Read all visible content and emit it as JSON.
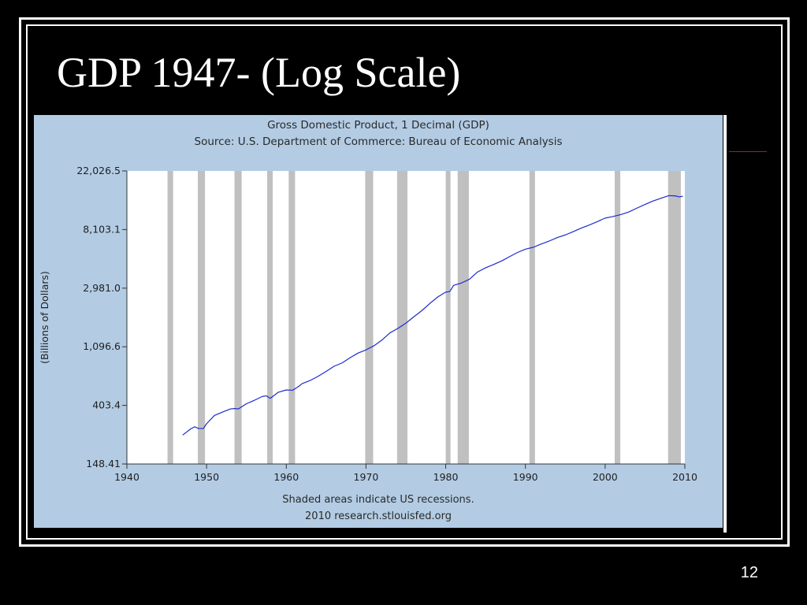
{
  "slide": {
    "title": "GDP 1947- (Log Scale)",
    "page_number": "12"
  },
  "colors": {
    "background": "#000000",
    "chart_background": "#b3cce4",
    "plot_background": "#ffffff",
    "recession_shade": "#c0c0c0",
    "series_line": "#1e2ccb",
    "accent_line": "#a61f14"
  },
  "chart_data": {
    "type": "line",
    "title": "Gross Domestic Product, 1 Decimal (GDP)",
    "subtitle": "Source: U.S. Department of Commerce: Bureau of Economic Analysis",
    "ylabel": "(Billions of Dollars)",
    "y_scale": "log",
    "xlim": [
      1940,
      2010
    ],
    "ylim": [
      148.41,
      22026.5
    ],
    "x_ticks": [
      1940,
      1950,
      1960,
      1970,
      1980,
      1990,
      2000,
      2010
    ],
    "x_tick_labels": [
      "1940",
      "1950",
      "1960",
      "1970",
      "1980",
      "1990",
      "2000",
      "2010"
    ],
    "y_ticks": [
      148.41,
      403.4,
      1096.6,
      2981.0,
      8103.1,
      22026.5
    ],
    "y_tick_labels": [
      "148.41",
      "403.4",
      "1,096.6",
      "2,981.0",
      "8,103.1",
      "22,026.5"
    ],
    "grid": false,
    "recessions": [
      [
        1945.1,
        1945.8
      ],
      [
        1948.9,
        1949.8
      ],
      [
        1953.5,
        1954.4
      ],
      [
        1957.6,
        1958.3
      ],
      [
        1960.3,
        1961.1
      ],
      [
        1969.9,
        1970.9
      ],
      [
        1973.9,
        1975.2
      ],
      [
        1980.0,
        1980.6
      ],
      [
        1981.5,
        1982.9
      ],
      [
        1990.5,
        1991.2
      ],
      [
        2001.2,
        2001.9
      ],
      [
        2007.9,
        2009.5
      ]
    ],
    "series": [
      {
        "values": [
          [
            1947.0,
            243
          ],
          [
            1948.0,
            270
          ],
          [
            1948.5,
            280
          ],
          [
            1949.0,
            272
          ],
          [
            1949.6,
            272
          ],
          [
            1950.0,
            295
          ],
          [
            1951.0,
            340
          ],
          [
            1952.0,
            360
          ],
          [
            1953.0,
            380
          ],
          [
            1953.5,
            382
          ],
          [
            1954.0,
            380
          ],
          [
            1955.0,
            415
          ],
          [
            1956.0,
            440
          ],
          [
            1957.0,
            470
          ],
          [
            1957.5,
            475
          ],
          [
            1958.0,
            455
          ],
          [
            1959.0,
            505
          ],
          [
            1960.0,
            525
          ],
          [
            1960.8,
            522
          ],
          [
            1961.5,
            555
          ],
          [
            1962.0,
            585
          ],
          [
            1963.0,
            617
          ],
          [
            1964.0,
            663
          ],
          [
            1965.0,
            720
          ],
          [
            1966.0,
            787
          ],
          [
            1967.0,
            832
          ],
          [
            1968.0,
            909
          ],
          [
            1969.0,
            985
          ],
          [
            1970.0,
            1040
          ],
          [
            1971.0,
            1115
          ],
          [
            1972.0,
            1230
          ],
          [
            1973.0,
            1390
          ],
          [
            1974.0,
            1500
          ],
          [
            1975.0,
            1640
          ],
          [
            1976.0,
            1830
          ],
          [
            1977.0,
            2030
          ],
          [
            1978.0,
            2295
          ],
          [
            1979.0,
            2565
          ],
          [
            1980.0,
            2790
          ],
          [
            1980.5,
            2810
          ],
          [
            1981.0,
            3130
          ],
          [
            1982.0,
            3260
          ],
          [
            1983.0,
            3480
          ],
          [
            1984.0,
            3930
          ],
          [
            1985.0,
            4220
          ],
          [
            1986.0,
            4460
          ],
          [
            1987.0,
            4740
          ],
          [
            1988.0,
            5100
          ],
          [
            1989.0,
            5480
          ],
          [
            1990.0,
            5800
          ],
          [
            1991.0,
            5990
          ],
          [
            1992.0,
            6340
          ],
          [
            1993.0,
            6670
          ],
          [
            1994.0,
            7070
          ],
          [
            1995.0,
            7390
          ],
          [
            1996.0,
            7820
          ],
          [
            1997.0,
            8300
          ],
          [
            1998.0,
            8750
          ],
          [
            1999.0,
            9270
          ],
          [
            2000.0,
            9850
          ],
          [
            2001.0,
            10130
          ],
          [
            2002.0,
            10470
          ],
          [
            2003.0,
            10960
          ],
          [
            2004.0,
            11690
          ],
          [
            2005.0,
            12430
          ],
          [
            2006.0,
            13180
          ],
          [
            2007.0,
            13810
          ],
          [
            2008.0,
            14450
          ],
          [
            2008.8,
            14400
          ],
          [
            2009.3,
            14150
          ],
          [
            2009.75,
            14300
          ]
        ]
      }
    ],
    "notes": [
      "Shaded areas indicate US recessions.",
      "2010 research.stlouisfed.org"
    ]
  }
}
